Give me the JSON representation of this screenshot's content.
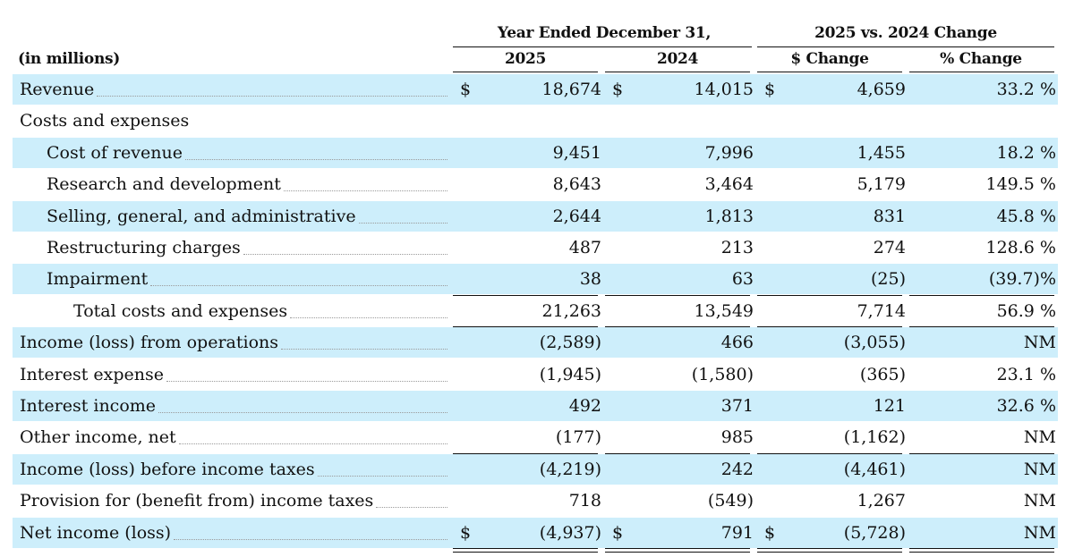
{
  "header": {
    "units": "(in millions)",
    "group_year": "Year Ended December 31,",
    "group_change": "2025 vs. 2024 Change",
    "col_2025": "2025",
    "col_2024": "2024",
    "col_dollar_change": "$ Change",
    "col_pct_change": "% Change"
  },
  "currency_symbol": "$",
  "rows": [
    {
      "label": "Revenue",
      "indent": 0,
      "v2025": "18,674",
      "v2024": "14,015",
      "chg": "4,659",
      "pct": "33.2 %",
      "currency": true
    },
    {
      "label": "Costs and expenses",
      "indent": 0,
      "v2025": "",
      "v2024": "",
      "chg": "",
      "pct": ""
    },
    {
      "label": "Cost of revenue",
      "indent": 1,
      "v2025": "9,451",
      "v2024": "7,996",
      "chg": "1,455",
      "pct": "18.2 %"
    },
    {
      "label": "Research and development",
      "indent": 1,
      "v2025": "8,643",
      "v2024": "3,464",
      "chg": "5,179",
      "pct": "149.5 %"
    },
    {
      "label": "Selling, general, and administrative",
      "indent": 1,
      "v2025": "2,644",
      "v2024": "1,813",
      "chg": "831",
      "pct": "45.8 %"
    },
    {
      "label": "Restructuring charges",
      "indent": 1,
      "v2025": "487",
      "v2024": "213",
      "chg": "274",
      "pct": "128.6 %"
    },
    {
      "label": "Impairment",
      "indent": 1,
      "v2025": "38",
      "v2024": "63",
      "chg": "(25)",
      "pct": "(39.7)%"
    },
    {
      "label": "Total costs and expenses",
      "indent": 2,
      "v2025": "21,263",
      "v2024": "13,549",
      "chg": "7,714",
      "pct": "56.9 %"
    },
    {
      "label": "Income (loss) from operations",
      "indent": 0,
      "v2025": "(2,589)",
      "v2024": "466",
      "chg": "(3,055)",
      "pct": "NM"
    },
    {
      "label": "Interest expense",
      "indent": 0,
      "v2025": "(1,945)",
      "v2024": "(1,580)",
      "chg": "(365)",
      "pct": "23.1 %"
    },
    {
      "label": "Interest income",
      "indent": 0,
      "v2025": "492",
      "v2024": "371",
      "chg": "121",
      "pct": "32.6 %"
    },
    {
      "label": "Other income, net",
      "indent": 0,
      "v2025": "(177)",
      "v2024": "985",
      "chg": "(1,162)",
      "pct": "NM"
    },
    {
      "label": "Income (loss) before income taxes",
      "indent": 0,
      "v2025": "(4,219)",
      "v2024": "242",
      "chg": "(4,461)",
      "pct": "NM"
    },
    {
      "label": "Provision for (benefit from) income taxes",
      "indent": 0,
      "v2025": "718",
      "v2024": "(549)",
      "chg": "1,267",
      "pct": "NM"
    },
    {
      "label": "Net income (loss)",
      "indent": 0,
      "v2025": "(4,937)",
      "v2024": "791",
      "chg": "(5,728)",
      "pct": "NM",
      "currency": true
    }
  ],
  "row_shade_color": "#cdeefb"
}
